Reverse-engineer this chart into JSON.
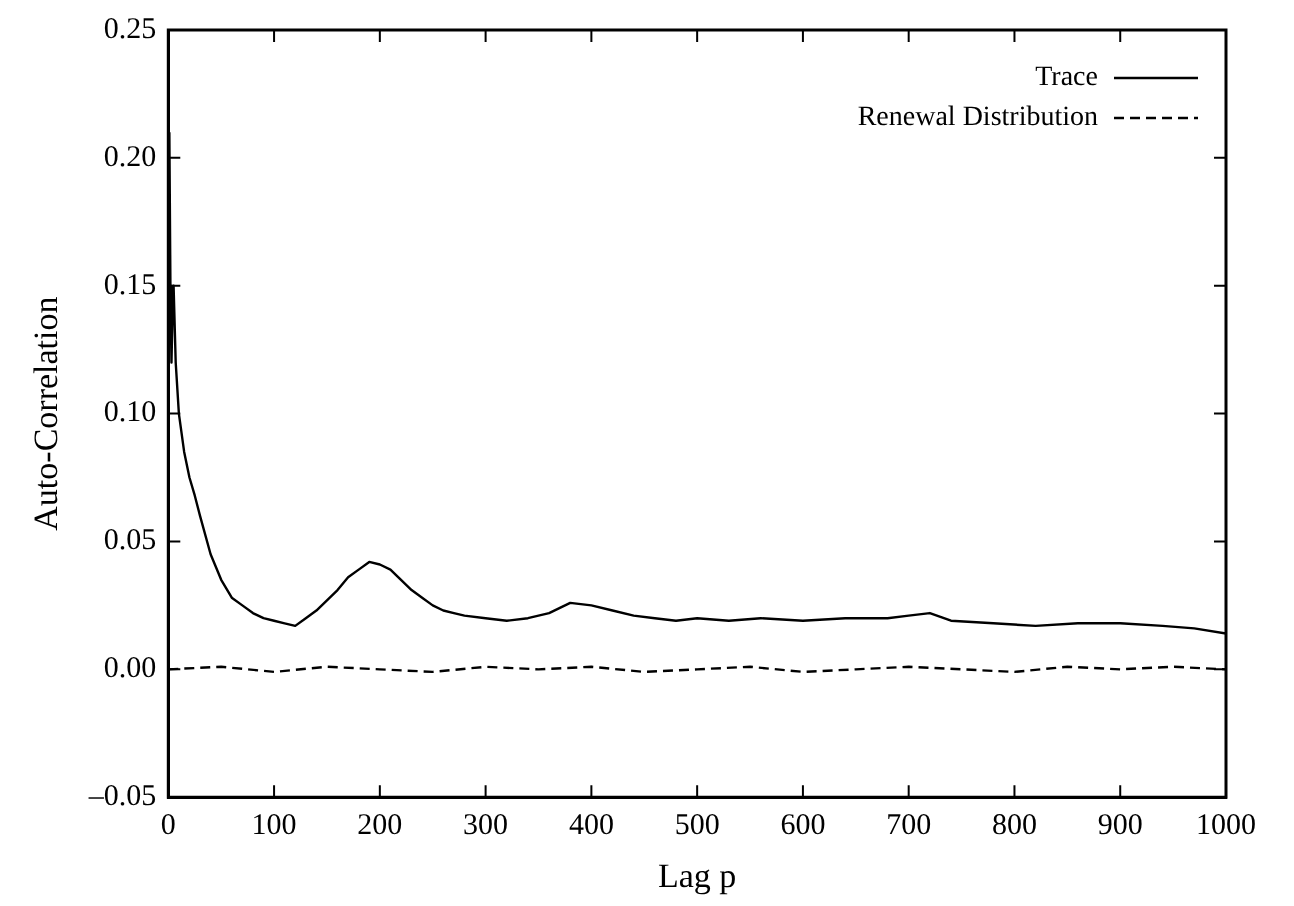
{
  "chart_data": {
    "type": "line",
    "xlabel": "Lag p",
    "ylabel": "Auto-Correlation",
    "xlim": [
      0,
      1000
    ],
    "xticks": [
      0,
      100,
      200,
      300,
      400,
      500,
      600,
      700,
      800,
      900,
      1000
    ],
    "ylim": [
      -0.05,
      0.25
    ],
    "yticks": [
      {
        "value": -0.05,
        "label": "–0.05"
      },
      {
        "value": 0,
        "label": "0.00"
      },
      {
        "value": 0.05,
        "label": "0.05"
      },
      {
        "value": 0.1,
        "label": "0.10"
      },
      {
        "value": 0.15,
        "label": "0.15"
      },
      {
        "value": 0.2,
        "label": "0.20"
      },
      {
        "value": 0.25,
        "label": "0.25"
      }
    ],
    "grid": false,
    "legend": "top right",
    "marker": "none",
    "series": [
      {
        "name": "Trace",
        "color": "#000000",
        "line_style": "solid",
        "x": [
          1,
          2,
          3,
          4,
          5,
          7,
          10,
          15,
          20,
          25,
          30,
          40,
          50,
          60,
          70,
          80,
          90,
          100,
          110,
          120,
          130,
          140,
          150,
          160,
          170,
          180,
          190,
          200,
          210,
          220,
          230,
          240,
          250,
          260,
          270,
          280,
          300,
          320,
          340,
          360,
          380,
          400,
          420,
          440,
          460,
          480,
          500,
          530,
          560,
          600,
          640,
          680,
          700,
          720,
          740,
          780,
          820,
          860,
          900,
          940,
          970,
          1000
        ],
        "values": [
          0.21,
          0.15,
          0.12,
          0.14,
          0.15,
          0.12,
          0.1,
          0.085,
          0.075,
          0.068,
          0.06,
          0.045,
          0.035,
          0.028,
          0.025,
          0.022,
          0.02,
          0.019,
          0.018,
          0.017,
          0.02,
          0.023,
          0.027,
          0.031,
          0.036,
          0.039,
          0.042,
          0.041,
          0.039,
          0.035,
          0.031,
          0.028,
          0.025,
          0.023,
          0.022,
          0.021,
          0.02,
          0.019,
          0.02,
          0.022,
          0.026,
          0.025,
          0.023,
          0.021,
          0.02,
          0.019,
          0.02,
          0.019,
          0.02,
          0.019,
          0.02,
          0.02,
          0.021,
          0.022,
          0.019,
          0.018,
          0.017,
          0.018,
          0.018,
          0.017,
          0.016,
          0.014
        ]
      },
      {
        "name": "Renewal Distribution",
        "color": "#000000",
        "line_style": "dashed",
        "x": [
          0,
          50,
          100,
          150,
          200,
          250,
          300,
          350,
          400,
          450,
          500,
          550,
          600,
          650,
          700,
          750,
          800,
          850,
          900,
          950,
          1000
        ],
        "values": [
          0.0,
          0.001,
          -0.001,
          0.001,
          0.0,
          -0.001,
          0.001,
          0.0,
          0.001,
          -0.001,
          0.0,
          0.001,
          -0.001,
          0.0,
          0.001,
          0.0,
          -0.001,
          0.001,
          0.0,
          0.001,
          0.0
        ]
      }
    ]
  }
}
